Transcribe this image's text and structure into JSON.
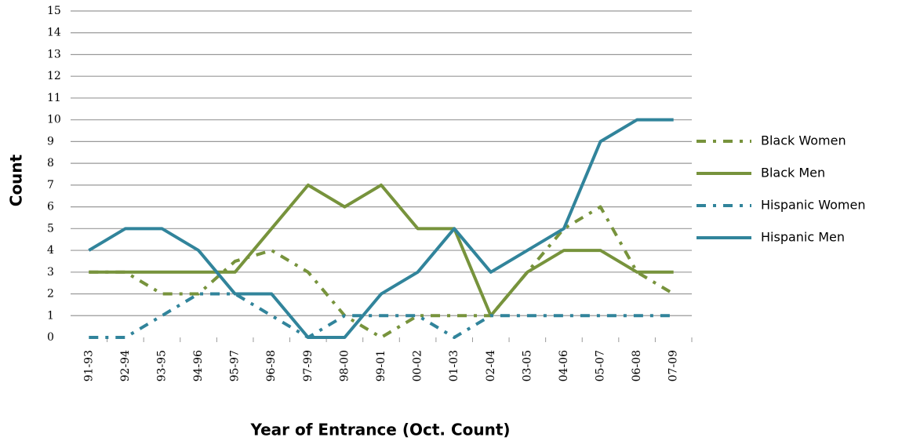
{
  "chart_data": {
    "type": "line",
    "x_label": "Year of Entrance (Oct. Count)",
    "y_label": "Count",
    "categories": [
      "91-93",
      "92-94",
      "93-95",
      "94-96",
      "95-97",
      "96-98",
      "97-99",
      "98-00",
      "99-01",
      "00-02",
      "01-03",
      "02-04",
      "03-05",
      "04-06",
      "05-07",
      "06-08",
      "07-09"
    ],
    "series": [
      {
        "name": "Black Women",
        "color": "#77933c",
        "dashed": true,
        "values": [
          3,
          3,
          2,
          2,
          3.5,
          4,
          3,
          1,
          0,
          1,
          1,
          1,
          3,
          5,
          6,
          3,
          2
        ]
      },
      {
        "name": "Black Men",
        "color": "#77933c",
        "dashed": false,
        "values": [
          3,
          3,
          3,
          3,
          3,
          5,
          7,
          6,
          7,
          5,
          5,
          1,
          3,
          4,
          4,
          3,
          3
        ]
      },
      {
        "name": "Hispanic Women",
        "color": "#31849b",
        "dashed": true,
        "values": [
          0,
          0,
          1,
          2,
          2,
          1,
          0,
          1,
          1,
          1,
          0,
          1,
          1,
          1,
          1,
          1,
          1
        ]
      },
      {
        "name": "Hispanic Men",
        "color": "#31849b",
        "dashed": false,
        "values": [
          4,
          5,
          5,
          4,
          2,
          2,
          0,
          0,
          2,
          3,
          5,
          3,
          4,
          5,
          9,
          10,
          10
        ]
      }
    ],
    "ylim": [
      0,
      15
    ],
    "yticks": [
      0,
      1,
      2,
      3,
      4,
      5,
      6,
      7,
      8,
      9,
      10,
      11,
      12,
      13,
      14,
      15
    ],
    "grid": true,
    "legend": "right"
  }
}
